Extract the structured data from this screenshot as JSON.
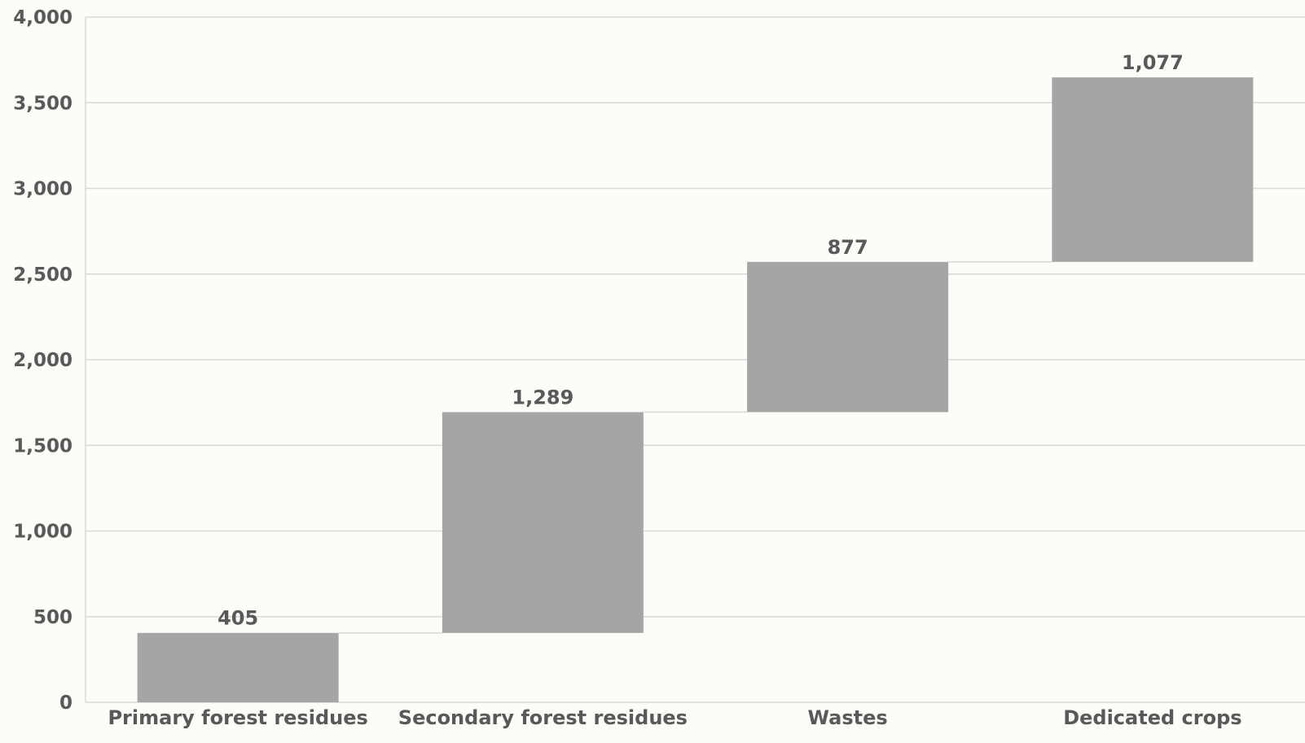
{
  "chart_data": {
    "type": "bar",
    "subtype": "waterfall",
    "title": "",
    "xlabel": "",
    "ylabel": "",
    "categories": [
      "Primary forest residues",
      "Secondary forest residues",
      "Wastes",
      "Dedicated crops"
    ],
    "values": [
      405,
      1289,
      877,
      1077
    ],
    "value_labels": [
      "405",
      "1,289",
      "877",
      "1,077"
    ],
    "ylim": [
      0,
      4000
    ],
    "yticks": [
      0,
      500,
      1000,
      1500,
      2000,
      2500,
      3000,
      3500,
      4000
    ],
    "ytick_labels": [
      "0",
      "500",
      "1,000",
      "1,500",
      "2,000",
      "2,500",
      "3,000",
      "3,500",
      "4,000"
    ],
    "grid": true,
    "legend": "none",
    "colors": {
      "bar": "#a5a5a5",
      "grid": "#d9d9d9",
      "connector": "#d9d9d9",
      "text": "#595959",
      "background": "#fcfcf8"
    }
  }
}
